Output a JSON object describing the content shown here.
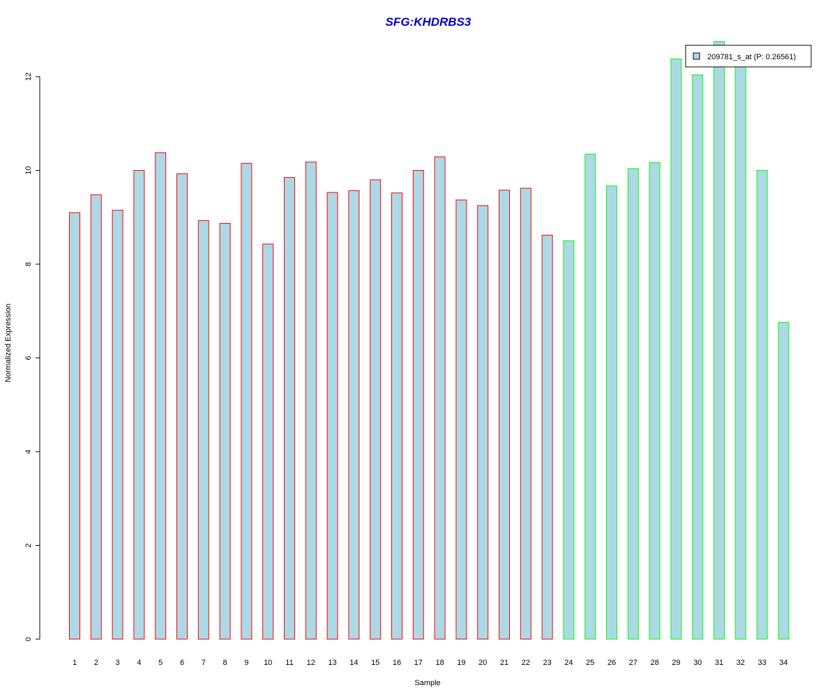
{
  "chart_data": {
    "type": "bar",
    "title": "SFG:KHDRBS3",
    "xlabel": "Sample",
    "ylabel": "Normalized Expression",
    "categories": [
      "1",
      "2",
      "3",
      "4",
      "5",
      "6",
      "7",
      "8",
      "9",
      "10",
      "11",
      "12",
      "13",
      "14",
      "15",
      "16",
      "17",
      "18",
      "19",
      "20",
      "21",
      "22",
      "23",
      "24",
      "25",
      "26",
      "27",
      "28",
      "29",
      "30",
      "31",
      "32",
      "33",
      "34"
    ],
    "series": [
      {
        "name": "209781_s_at (P: 0.26561)",
        "values": [
          9.1,
          9.48,
          9.15,
          10.0,
          10.38,
          9.93,
          8.93,
          8.87,
          10.15,
          8.43,
          9.85,
          10.18,
          9.53,
          9.57,
          9.8,
          9.52,
          10.0,
          10.29,
          9.37,
          9.25,
          9.58,
          9.62,
          8.62,
          8.5,
          10.35,
          9.67,
          10.04,
          10.17,
          12.38,
          12.04,
          12.75,
          12.5,
          10.0,
          6.76
        ]
      }
    ],
    "bar_fill": "#add8e6",
    "group_outline_colors": [
      "#ff0000",
      "#ff0000",
      "#ff0000",
      "#ff0000",
      "#ff0000",
      "#ff0000",
      "#ff0000",
      "#ff0000",
      "#ff0000",
      "#ff0000",
      "#ff0000",
      "#ff0000",
      "#ff0000",
      "#ff0000",
      "#ff0000",
      "#ff0000",
      "#ff0000",
      "#ff0000",
      "#ff0000",
      "#ff0000",
      "#ff0000",
      "#ff0000",
      "#ff0000",
      "#00ff00",
      "#00ff00",
      "#00ff00",
      "#00ff00",
      "#00ff00",
      "#00ff00",
      "#00ff00",
      "#00ff00",
      "#00ff00",
      "#00ff00",
      "#00ff00"
    ],
    "title_color": "#0000cd",
    "ylim": [
      0,
      12.8
    ],
    "yticks": [
      0,
      2,
      4,
      6,
      8,
      10,
      12
    ],
    "grid": false,
    "legend": {
      "position": "top-right",
      "label": "209781_s_at (P: 0.26561)"
    }
  }
}
